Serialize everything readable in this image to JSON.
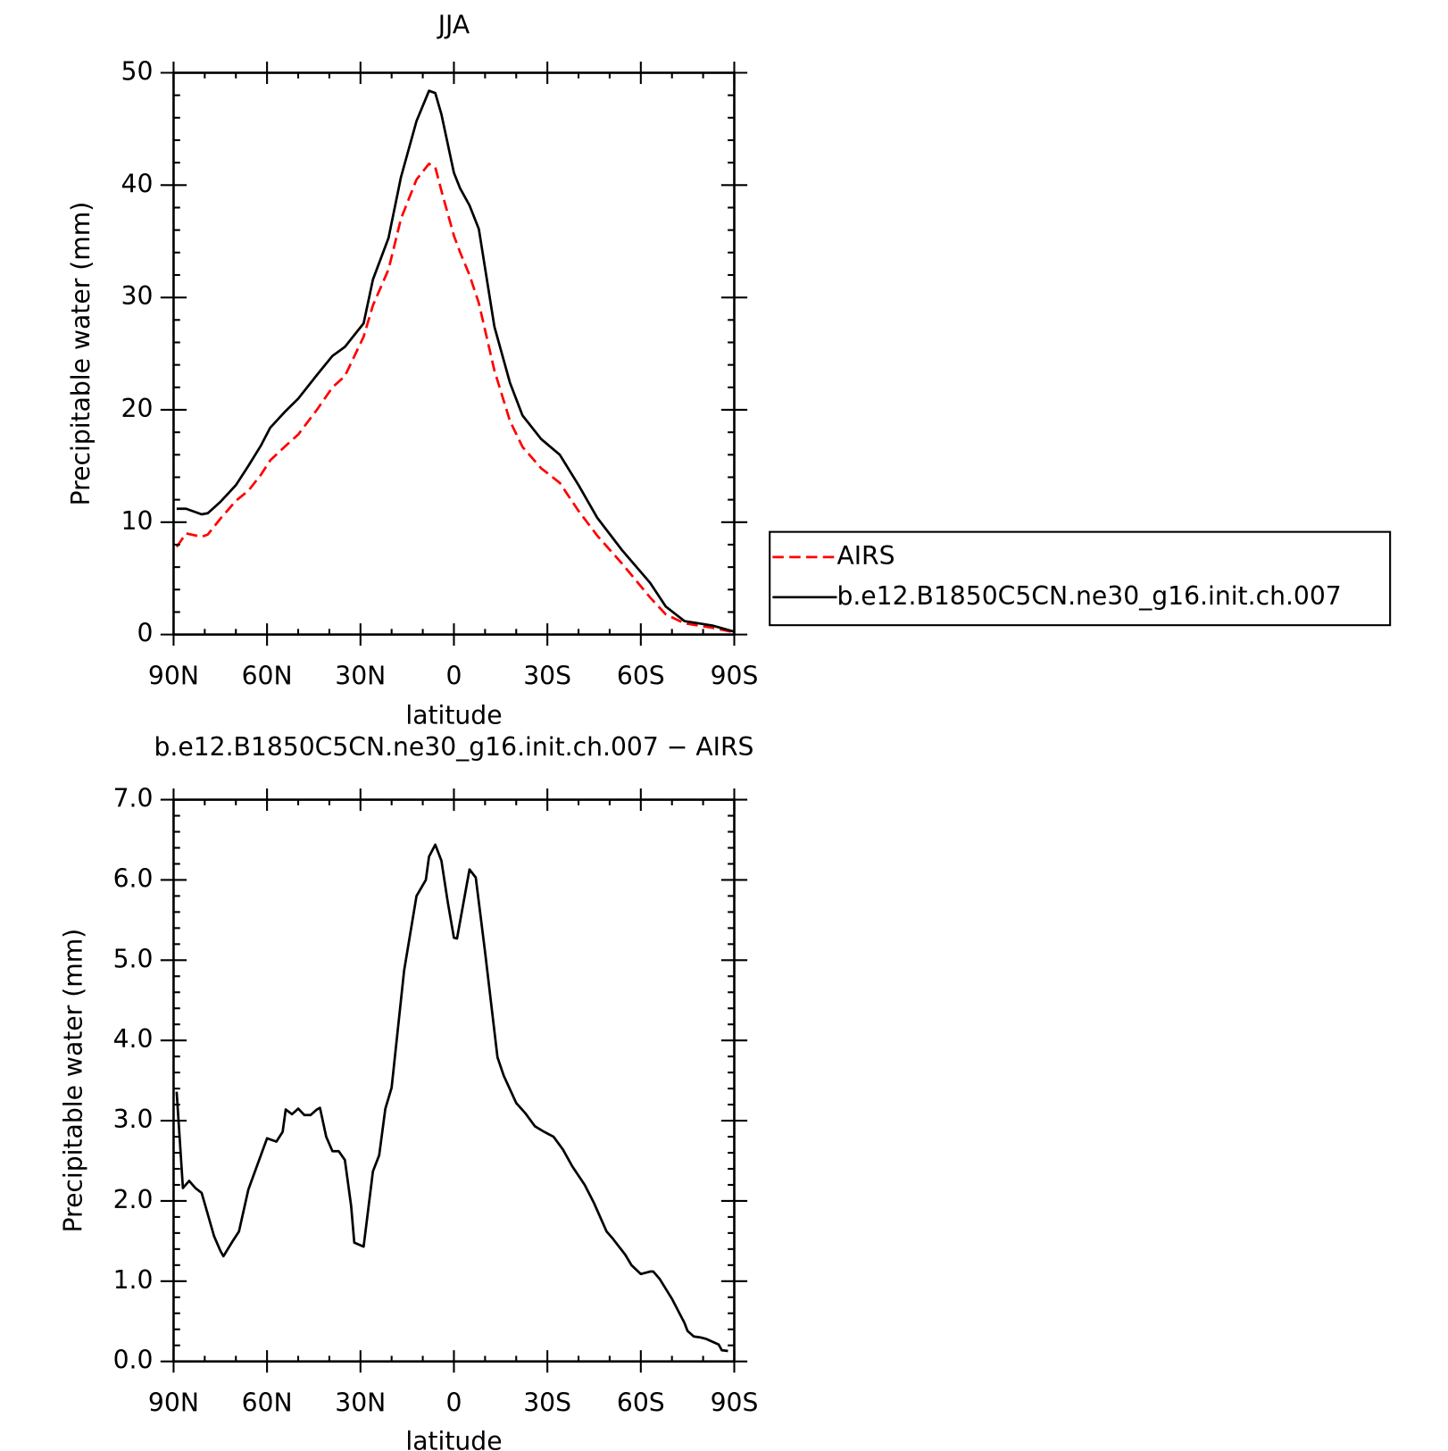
{
  "chart_data": [
    {
      "type": "line",
      "title": "JJA",
      "xlabel": "latitude",
      "ylabel": "Precipitable water (mm)",
      "x": [
        89,
        86,
        81,
        79,
        75,
        70,
        66,
        62,
        59,
        54,
        50,
        44,
        39,
        35,
        29,
        26,
        21,
        17,
        12,
        8,
        6,
        4,
        0,
        -2,
        -5,
        -8,
        -13,
        -18,
        -22,
        -28,
        -34,
        -40,
        -46,
        -54,
        -63,
        -68,
        -74,
        -83,
        -90
      ],
      "series": [
        {
          "name": "AIRS",
          "color": "#ff0000",
          "linestyle": "dashed",
          "values": [
            7.8,
            9.0,
            8.7,
            8.9,
            10.3,
            11.9,
            12.8,
            14.2,
            15.5,
            16.8,
            17.8,
            20.0,
            22.0,
            23.0,
            26.5,
            29.3,
            32.5,
            37.0,
            40.5,
            41.9,
            41.6,
            39.5,
            35.5,
            34.0,
            32.0,
            29.5,
            23.5,
            19.0,
            16.7,
            14.8,
            13.5,
            11.0,
            8.8,
            6.3,
            3.3,
            1.8,
            1.0,
            0.6,
            0.2
          ]
        },
        {
          "name": "b.e12.B1850C5CN.ne30_g16.init.ch.007",
          "color": "#000000",
          "linestyle": "solid",
          "values": [
            11.2,
            11.2,
            10.7,
            10.8,
            11.8,
            13.3,
            15.0,
            16.8,
            18.4,
            19.9,
            21.0,
            23.1,
            24.8,
            25.6,
            27.7,
            31.6,
            35.3,
            40.7,
            45.7,
            48.4,
            48.2,
            46.3,
            41.1,
            39.7,
            38.2,
            36.1,
            27.4,
            22.4,
            19.5,
            17.4,
            16.0,
            13.3,
            10.4,
            7.5,
            4.6,
            2.5,
            1.2,
            0.8,
            0.25
          ]
        }
      ],
      "xlim": [
        90,
        -90
      ],
      "xticks": [
        {
          "value": 90,
          "label": "90N"
        },
        {
          "value": 60,
          "label": "60N"
        },
        {
          "value": 30,
          "label": "30N"
        },
        0,
        {
          "value": -30,
          "label": "30S"
        },
        {
          "value": -60,
          "label": "60S"
        },
        {
          "value": -90,
          "label": "90S"
        }
      ],
      "xminorticks": [
        80,
        70,
        50,
        40,
        20,
        10,
        -10,
        -20,
        -40,
        -50,
        -70,
        -80
      ],
      "ylim": [
        0,
        50
      ],
      "yticks": [
        0,
        10,
        20,
        30,
        40,
        50
      ],
      "yminorticks": [
        2,
        4,
        6,
        8,
        12,
        14,
        16,
        18,
        22,
        24,
        26,
        28,
        32,
        34,
        36,
        38,
        42,
        44,
        46,
        48
      ],
      "legend": "right"
    },
    {
      "type": "line",
      "title": "b.e12.B1850C5CN.ne30_g16.init.ch.007 − AIRS",
      "xlabel": "latitude",
      "ylabel": "Precipitable water (mm)",
      "x": [
        89,
        87,
        85,
        83,
        81,
        77,
        75,
        74,
        71,
        69,
        66,
        60,
        57,
        55,
        54,
        52,
        50,
        48,
        46,
        44,
        43,
        41,
        39,
        37,
        35,
        33,
        32,
        29,
        26,
        24,
        22,
        20,
        16,
        12,
        9,
        8,
        6,
        4,
        2,
        0,
        -1,
        -5,
        -7,
        -10,
        -14,
        -16,
        -20,
        -23,
        -26,
        -29,
        -32,
        -35,
        -38,
        -42,
        -45,
        -49,
        -51,
        -55,
        -57,
        -60,
        -63,
        -64,
        -66,
        -70,
        -74,
        -75,
        -77,
        -79,
        -81,
        -85,
        -86,
        -88
      ],
      "series": [
        {
          "name": "b.e12.B1850C5CN.ne30_g16.init.ch.007 − AIRS",
          "color": "#000000",
          "linestyle": "solid",
          "values": [
            3.36,
            2.16,
            2.25,
            2.16,
            2.1,
            1.56,
            1.38,
            1.31,
            1.5,
            1.62,
            2.14,
            2.78,
            2.74,
            2.86,
            3.14,
            3.08,
            3.15,
            3.07,
            3.07,
            3.14,
            3.16,
            2.8,
            2.62,
            2.62,
            2.51,
            1.94,
            1.48,
            1.43,
            2.37,
            2.57,
            3.15,
            3.41,
            4.87,
            5.8,
            6.0,
            6.29,
            6.44,
            6.24,
            5.73,
            5.28,
            5.27,
            6.13,
            6.03,
            5.1,
            3.79,
            3.56,
            3.22,
            3.09,
            2.93,
            2.86,
            2.8,
            2.64,
            2.43,
            2.2,
            1.97,
            1.62,
            1.53,
            1.33,
            1.2,
            1.09,
            1.12,
            1.12,
            1.03,
            0.78,
            0.48,
            0.38,
            0.31,
            0.3,
            0.28,
            0.21,
            0.14,
            0.13
          ]
        }
      ],
      "xlim": [
        90,
        -90
      ],
      "xticks": [
        {
          "value": 90,
          "label": "90N"
        },
        {
          "value": 60,
          "label": "60N"
        },
        {
          "value": 30,
          "label": "30N"
        },
        0,
        {
          "value": -30,
          "label": "30S"
        },
        {
          "value": -60,
          "label": "60S"
        },
        {
          "value": -90,
          "label": "90S"
        }
      ],
      "xminorticks": [
        80,
        70,
        50,
        40,
        20,
        10,
        -10,
        -20,
        -40,
        -50,
        -70,
        -80
      ],
      "ylim": [
        0,
        7
      ],
      "yticks": [
        {
          "value": 0,
          "label": "0.0"
        },
        {
          "value": 1,
          "label": "1.0"
        },
        {
          "value": 2,
          "label": "2.0"
        },
        {
          "value": 3,
          "label": "3.0"
        },
        {
          "value": 4,
          "label": "4.0"
        },
        {
          "value": 5,
          "label": "5.0"
        },
        {
          "value": 6,
          "label": "6.0"
        },
        {
          "value": 7,
          "label": "7.0"
        }
      ],
      "yminorticks": [
        0.2,
        0.4,
        0.6,
        0.8,
        1.2,
        1.4,
        1.6,
        1.8,
        2.2,
        2.4,
        2.6,
        2.8,
        3.2,
        3.4,
        3.6,
        3.8,
        4.2,
        4.4,
        4.6,
        4.8,
        5.2,
        5.4,
        5.6,
        5.8,
        6.2,
        6.4,
        6.6,
        6.8
      ]
    }
  ]
}
